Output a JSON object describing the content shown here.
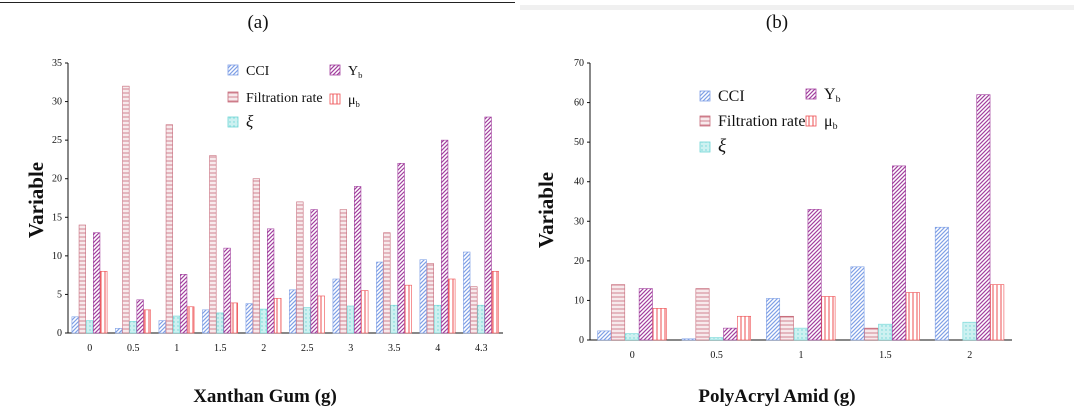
{
  "colors": {
    "cci": "#7fa0e6",
    "filtration": "#c86e7d",
    "xi": "#6fd6d6",
    "yb": "#a23f9e",
    "mu": "#ee4f52"
  },
  "chart_data": [
    {
      "type": "bar",
      "panel_label": "(a)",
      "xlabel": "Xanthan Gum (g)",
      "ylabel": "Variable",
      "ylim": [
        0,
        35
      ],
      "yticks": [
        0,
        5,
        10,
        15,
        20,
        25,
        30,
        35
      ],
      "categories": [
        "0",
        "0.5",
        "1",
        "1.5",
        "2",
        "2.5",
        "3",
        "3.5",
        "4",
        "4.3"
      ],
      "grid": false,
      "legend_position": "top-center",
      "series": [
        {
          "key": "cci",
          "name": "CCI",
          "values": [
            2.1,
            0.6,
            1.6,
            3.0,
            3.8,
            5.6,
            7.0,
            9.2,
            9.5,
            10.5
          ]
        },
        {
          "key": "filtration",
          "name": "Filtration rate",
          "values": [
            14,
            32,
            27,
            23,
            20,
            17,
            16,
            13,
            9,
            6
          ]
        },
        {
          "key": "xi",
          "name": "ξ",
          "values": [
            1.6,
            1.5,
            2.2,
            2.6,
            3.1,
            3.3,
            3.5,
            3.6,
            3.6,
            3.6
          ]
        },
        {
          "key": "yb",
          "name": "Y",
          "name_sub": "b",
          "values": [
            13,
            4.3,
            7.6,
            11,
            13.5,
            16,
            19,
            22,
            25,
            28
          ]
        },
        {
          "key": "mu",
          "name": "μ",
          "name_sub": "b",
          "values": [
            8,
            3,
            3.4,
            3.9,
            4.5,
            4.8,
            5.5,
            6.2,
            7,
            8
          ]
        }
      ]
    },
    {
      "type": "bar",
      "panel_label": "(b)",
      "xlabel": "PolyAcryl Amid (g)",
      "ylabel": "Variable",
      "ylim": [
        0,
        70
      ],
      "yticks": [
        0,
        10,
        20,
        30,
        40,
        50,
        60,
        70
      ],
      "categories": [
        "0",
        "0.5",
        "1",
        "1.5",
        "2"
      ],
      "grid": false,
      "legend_position": "top-center",
      "series": [
        {
          "key": "cci",
          "name": "CCI",
          "values": [
            2.3,
            0.3,
            10.5,
            18.5,
            28.5
          ]
        },
        {
          "key": "filtration",
          "name": "Filtration rate",
          "values": [
            14,
            13,
            6,
            3,
            0
          ]
        },
        {
          "key": "xi",
          "name": "ξ",
          "values": [
            1.6,
            0.6,
            3,
            4,
            4.5
          ]
        },
        {
          "key": "yb",
          "name": "Y",
          "name_sub": "b",
          "values": [
            13,
            3,
            33,
            44,
            62
          ]
        },
        {
          "key": "mu",
          "name": "μ",
          "name_sub": "b",
          "values": [
            8,
            6,
            11,
            12,
            14
          ]
        }
      ]
    }
  ]
}
